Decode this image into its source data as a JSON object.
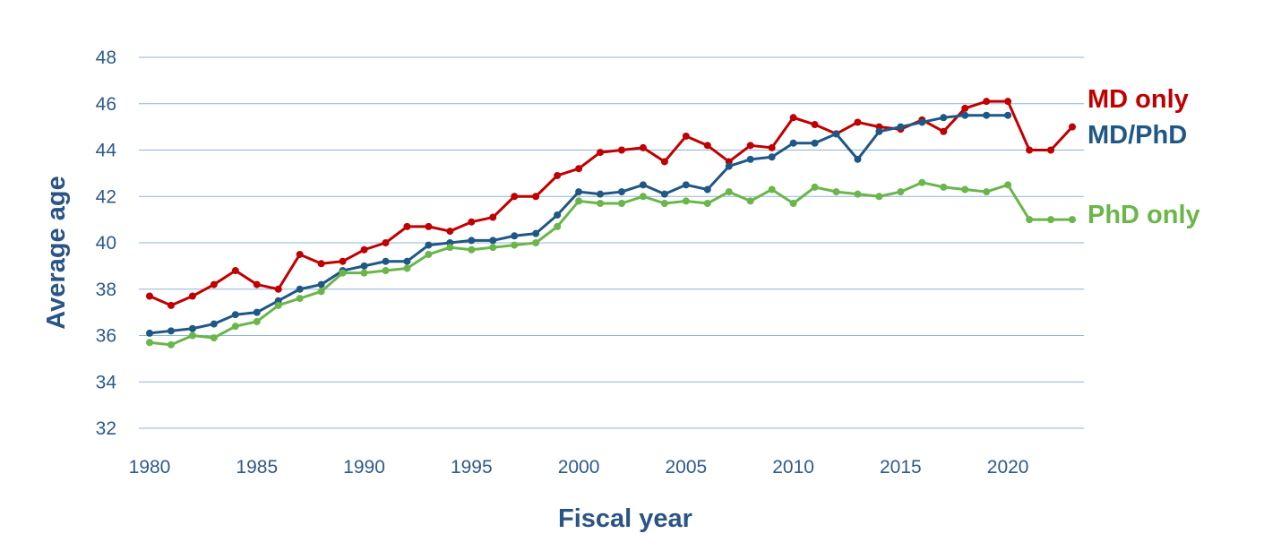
{
  "chart_data": {
    "type": "line",
    "xlabel": "Fiscal year",
    "ylabel": "Average age",
    "xlim": [
      1980,
      2023
    ],
    "ylim": [
      32,
      48
    ],
    "xticks": [
      1980,
      1985,
      1990,
      1995,
      2000,
      2005,
      2010,
      2015,
      2020
    ],
    "yticks": [
      32,
      34,
      36,
      38,
      40,
      42,
      44,
      46,
      48
    ],
    "grid": "horizontal",
    "legend": "inline-right",
    "colors": {
      "axis_text": "#2e5a8a",
      "axis_title": "#2b5486",
      "grid": "#8fb3d9"
    },
    "series": [
      {
        "name": "MD only",
        "color": "#c00000",
        "x": [
          1980,
          1981,
          1982,
          1983,
          1984,
          1985,
          1986,
          1987,
          1988,
          1989,
          1990,
          1991,
          1992,
          1993,
          1994,
          1995,
          1996,
          1997,
          1998,
          1999,
          2000,
          2001,
          2002,
          2003,
          2004,
          2005,
          2006,
          2007,
          2008,
          2009,
          2010,
          2011,
          2012,
          2013,
          2014,
          2015,
          2016,
          2017,
          2018,
          2019,
          2020,
          2021,
          2022,
          2023
        ],
        "values": [
          37.7,
          37.3,
          37.7,
          38.2,
          38.8,
          38.2,
          38.0,
          39.5,
          39.1,
          39.2,
          39.7,
          40.0,
          40.7,
          40.7,
          40.5,
          40.9,
          41.1,
          42.0,
          42.0,
          42.9,
          43.2,
          43.9,
          44.0,
          44.1,
          43.5,
          44.6,
          44.2,
          43.5,
          44.2,
          44.1,
          45.4,
          45.1,
          44.7,
          45.2,
          45.0,
          44.9,
          45.3,
          44.8,
          45.8,
          46.1,
          46.1,
          44.0,
          44.0,
          45.0
        ]
      },
      {
        "name": "MD/PhD",
        "color": "#1f5785",
        "x": [
          1980,
          1981,
          1982,
          1983,
          1984,
          1985,
          1986,
          1987,
          1988,
          1989,
          1990,
          1991,
          1992,
          1993,
          1994,
          1995,
          1996,
          1997,
          1998,
          1999,
          2000,
          2001,
          2002,
          2003,
          2004,
          2005,
          2006,
          2007,
          2008,
          2009,
          2010,
          2011,
          2012,
          2013,
          2014,
          2015,
          2016,
          2017,
          2018,
          2019,
          2020
        ],
        "values": [
          36.1,
          36.2,
          36.3,
          36.5,
          36.9,
          37.0,
          37.5,
          38.0,
          38.2,
          38.8,
          39.0,
          39.2,
          39.2,
          39.9,
          40.0,
          40.1,
          40.1,
          40.3,
          40.4,
          41.2,
          42.2,
          42.1,
          42.2,
          42.5,
          42.1,
          42.5,
          42.3,
          43.3,
          43.6,
          43.7,
          44.3,
          44.3,
          44.7,
          43.6,
          44.8,
          45.0,
          45.2,
          45.4,
          45.5,
          45.5,
          45.5
        ]
      },
      {
        "name": "PhD only",
        "color": "#6ab64a",
        "x": [
          1980,
          1981,
          1982,
          1983,
          1984,
          1985,
          1986,
          1987,
          1988,
          1989,
          1990,
          1991,
          1992,
          1993,
          1994,
          1995,
          1996,
          1997,
          1998,
          1999,
          2000,
          2001,
          2002,
          2003,
          2004,
          2005,
          2006,
          2007,
          2008,
          2009,
          2010,
          2011,
          2012,
          2013,
          2014,
          2015,
          2016,
          2017,
          2018,
          2019,
          2020,
          2021,
          2022,
          2023
        ],
        "values": [
          35.7,
          35.6,
          36.0,
          35.9,
          36.4,
          36.6,
          37.3,
          37.6,
          37.9,
          38.7,
          38.7,
          38.8,
          38.9,
          39.5,
          39.8,
          39.7,
          39.8,
          39.9,
          40.0,
          40.7,
          41.8,
          41.7,
          41.7,
          42.0,
          41.7,
          41.8,
          41.7,
          42.2,
          41.8,
          42.3,
          41.7,
          42.4,
          42.2,
          42.1,
          42.0,
          42.2,
          42.6,
          42.4,
          42.3,
          42.2,
          42.5,
          41.0,
          41.0,
          41.0
        ]
      }
    ]
  }
}
